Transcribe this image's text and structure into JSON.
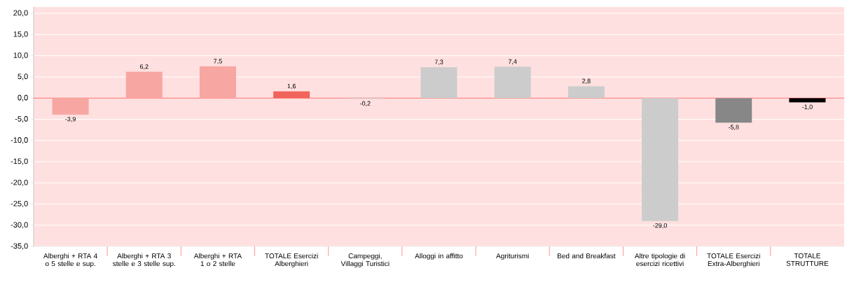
{
  "chart_data": {
    "type": "bar",
    "categories": [
      "Alberghi + RTA 4 o 5 stelle e sup.",
      "Alberghi + RTA 3 stelle e 3 stelle sup.",
      "Alberghi + RTA 1 o 2 stelle",
      "TOTALE Esercizi Alberghieri",
      "Campeggi, Villaggi Turistici",
      "Alloggi in affitto",
      "Agriturismi",
      "Bed and Breakfast",
      "Altre tipologie di esercizi ricettivi",
      "TOTALE Esercizi Extra-Alberghieri",
      "TOTALE STRUTTURE"
    ],
    "values": [
      -3.9,
      6.2,
      7.5,
      1.6,
      -0.2,
      7.3,
      7.4,
      2.8,
      -29.0,
      -5.8,
      -1.0
    ],
    "value_labels": [
      "-3,9",
      "6,2",
      "7,5",
      "1,6",
      "-0,2",
      "7,3",
      "7,4",
      "2,8",
      "-29,0",
      "-5,8",
      "-1,0"
    ],
    "colors": [
      "#f7a6a1",
      "#f7a6a1",
      "#f7a6a1",
      "#f0645c",
      "#cccccc",
      "#cccccc",
      "#cccccc",
      "#cccccc",
      "#cccccc",
      "#878787",
      "#000000"
    ],
    "ylim": [
      -35,
      21.5
    ],
    "yticks": [
      {
        "value": -35,
        "label": "-35,0"
      },
      {
        "value": -30,
        "label": "-30,0"
      },
      {
        "value": -25,
        "label": "-25,0"
      },
      {
        "value": -20,
        "label": "-20,0"
      },
      {
        "value": -15,
        "label": "-15,0"
      },
      {
        "value": -10,
        "label": "-10,0"
      },
      {
        "value": -5,
        "label": "-5,0"
      },
      {
        "value": 0,
        "label": "0,0"
      },
      {
        "value": 5,
        "label": "5,0"
      },
      {
        "value": 10,
        "label": "10,0"
      },
      {
        "value": 15,
        "label": "15,0"
      },
      {
        "value": 20,
        "label": "20,0"
      }
    ],
    "grid": "y",
    "ref_lines": [
      {
        "axis": "y",
        "value": 0,
        "color": "#ff4040"
      }
    ]
  }
}
